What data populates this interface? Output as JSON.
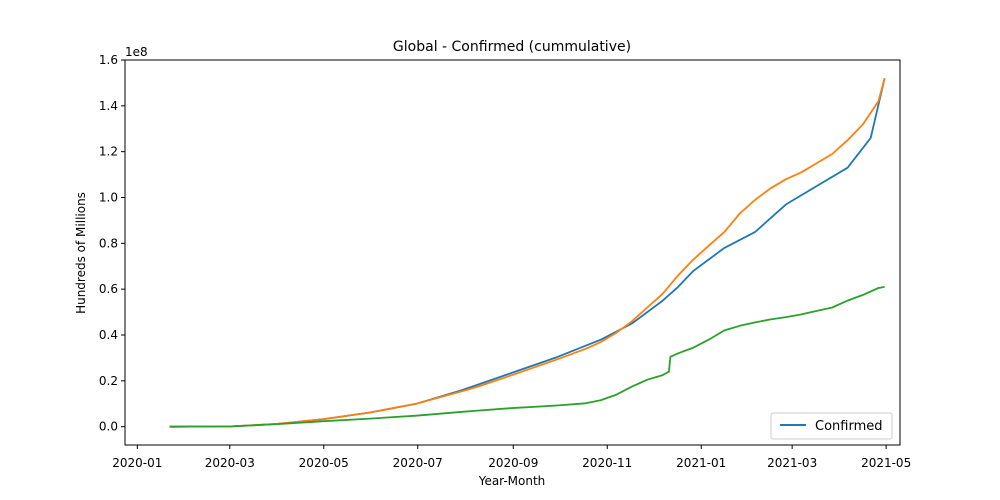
{
  "chart_data": {
    "type": "line",
    "title": "Global - Confirmed (cummulative)",
    "xlabel": "Year-Month",
    "ylabel": "Hundreds of Millions",
    "y_scale_label": "1e8",
    "xlim_days": [
      -27,
      140
    ],
    "x_ticks": [
      {
        "label": "2020-01",
        "day": -21
      },
      {
        "label": "2020-03",
        "day": 39
      },
      {
        "label": "2020-05",
        "day": 100
      },
      {
        "label": "2020-07",
        "day": 161
      },
      {
        "label": "2020-09",
        "day": 223
      },
      {
        "label": "2020-11",
        "day": 284
      },
      {
        "label": "2021-01",
        "day": 345
      },
      {
        "label": "2021-03",
        "day": 404
      },
      {
        "label": "2021-05",
        "day": 465
      }
    ],
    "x_range_days": [
      -29,
      474
    ],
    "ylim": [
      -0.08,
      1.6
    ],
    "y_ticks": [
      {
        "label": "0.0",
        "value": 0.0
      },
      {
        "label": "0.2",
        "value": 0.2
      },
      {
        "label": "0.4",
        "value": 0.4
      },
      {
        "label": "0.6",
        "value": 0.6
      },
      {
        "label": "0.8",
        "value": 0.8
      },
      {
        "label": "1.0",
        "value": 1.0
      },
      {
        "label": "1.2",
        "value": 1.2
      },
      {
        "label": "1.4",
        "value": 1.4
      },
      {
        "label": "1.6",
        "value": 1.6
      }
    ],
    "legend": {
      "position": "bottom-right",
      "entries": [
        {
          "label": "Confirmed",
          "color": "#1f77b4"
        }
      ]
    },
    "series": [
      {
        "name": "Confirmed",
        "color": "#1f77b4",
        "x": [
          0,
          40,
          70,
          100,
          130,
          160,
          190,
          220,
          250,
          280,
          300,
          320,
          330,
          340,
          350,
          360,
          380,
          400,
          420,
          440,
          455,
          464
        ],
        "y": [
          0.0,
          0.001,
          0.012,
          0.033,
          0.062,
          0.1,
          0.16,
          0.23,
          0.3,
          0.38,
          0.45,
          0.55,
          0.61,
          0.68,
          0.73,
          0.78,
          0.85,
          0.97,
          1.05,
          1.13,
          1.26,
          1.52
        ]
      },
      {
        "name": "",
        "color": "#ff7f0e",
        "x": [
          0,
          40,
          70,
          100,
          130,
          160,
          190,
          200,
          220,
          250,
          270,
          280,
          290,
          300,
          310,
          320,
          325,
          330,
          340,
          350,
          360,
          370,
          380,
          390,
          400,
          410,
          420,
          430,
          440,
          450,
          460,
          464
        ],
        "y": [
          0.0,
          0.001,
          0.012,
          0.033,
          0.062,
          0.1,
          0.155,
          0.175,
          0.22,
          0.29,
          0.34,
          0.37,
          0.41,
          0.46,
          0.52,
          0.58,
          0.62,
          0.66,
          0.73,
          0.79,
          0.85,
          0.93,
          0.99,
          1.04,
          1.08,
          1.11,
          1.15,
          1.19,
          1.25,
          1.32,
          1.42,
          1.52
        ]
      },
      {
        "name": "",
        "color": "#2ca02c",
        "x": [
          0,
          40,
          70,
          100,
          130,
          160,
          190,
          200,
          220,
          250,
          270,
          280,
          290,
          300,
          310,
          320,
          324,
          325,
          330,
          340,
          350,
          360,
          370,
          380,
          390,
          400,
          410,
          420,
          430,
          440,
          450,
          460,
          464
        ],
        "y": [
          0.0,
          0.001,
          0.011,
          0.024,
          0.035,
          0.048,
          0.065,
          0.07,
          0.08,
          0.092,
          0.102,
          0.116,
          0.14,
          0.175,
          0.205,
          0.225,
          0.24,
          0.305,
          0.32,
          0.345,
          0.38,
          0.42,
          0.44,
          0.455,
          0.468,
          0.478,
          0.49,
          0.505,
          0.52,
          0.55,
          0.575,
          0.605,
          0.61
        ]
      }
    ]
  }
}
